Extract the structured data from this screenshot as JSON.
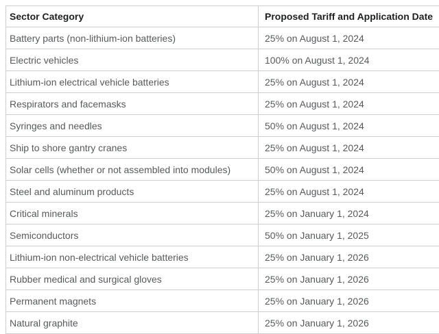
{
  "chart_data": {
    "type": "table",
    "columns": [
      "Sector Category",
      "Proposed Tariff and Application Date"
    ],
    "rows": [
      [
        "Battery parts (non-lithium-ion batteries)",
        "25% on August 1, 2024"
      ],
      [
        "Electric vehicles",
        "100% on August 1, 2024"
      ],
      [
        "Lithium-ion electrical vehicle batteries",
        "25% on August 1, 2024"
      ],
      [
        "Respirators and facemasks",
        "25% on August 1, 2024"
      ],
      [
        "Syringes and needles",
        "50% on August 1, 2024"
      ],
      [
        "Ship to shore gantry cranes",
        "25% on August 1, 2024"
      ],
      [
        "Solar cells (whether or not assembled into modules)",
        "50% on August 1, 2024"
      ],
      [
        "Steel and aluminum products",
        "25% on August 1, 2024"
      ],
      [
        "Critical minerals",
        "25% on January 1, 2024"
      ],
      [
        "Semiconductors",
        "50% on January 1, 2025"
      ],
      [
        "Lithium-ion non-electrical vehicle batteries",
        "25% on January 1, 2026"
      ],
      [
        "Rubber medical and surgical gloves",
        "25% on January 1, 2026"
      ],
      [
        "Permanent magnets",
        "25% on January 1, 2026"
      ],
      [
        "Natural graphite",
        "25% on January 1, 2026"
      ]
    ],
    "layout": {
      "grid": "all-borders",
      "header_row": true
    }
  },
  "style": {
    "border_color": "#cdcdcd",
    "header_text_color": "#1d1f20",
    "body_text_color": "#56595c",
    "background_color": "#ffffff"
  }
}
